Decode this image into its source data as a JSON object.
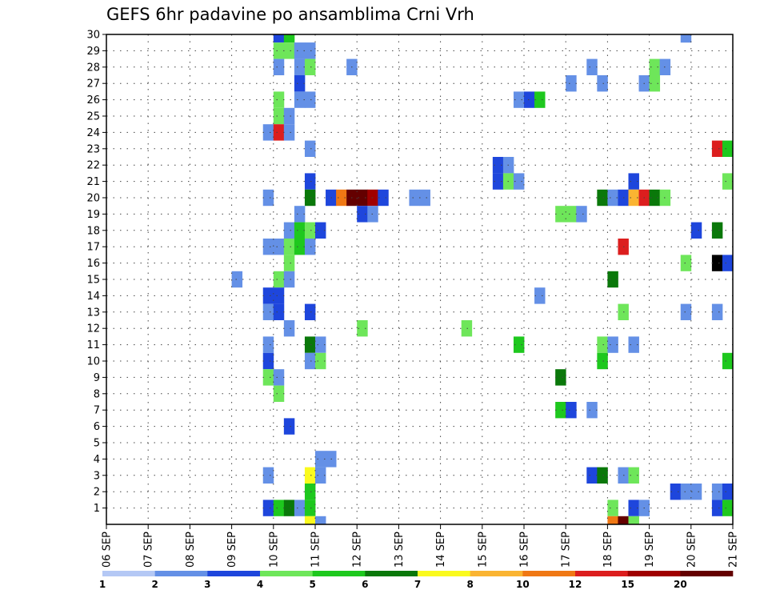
{
  "chart_data": {
    "type": "heatmap",
    "title": "GEFS 6hr padavine po ansamblima Crni Vrh",
    "x": {
      "start": "06 SEP",
      "steps_per_day": 4,
      "num_steps": 60,
      "ticks": [
        "06 SEP",
        "07 SEP",
        "08 SEP",
        "09 SEP",
        "10 SEP",
        "11 SEP",
        "12 SEP",
        "13 SEP",
        "14 SEP",
        "15 SEP",
        "16 SEP",
        "17 SEP",
        "18 SEP",
        "19 SEP",
        "20 SEP",
        "21 SEP"
      ]
    },
    "y": {
      "min": 0,
      "max": 30,
      "ticks": [
        "1",
        "2",
        "3",
        "4",
        "5",
        "6",
        "7",
        "8",
        "9",
        "10",
        "11",
        "12",
        "13",
        "14",
        "15",
        "16",
        "17",
        "18",
        "19",
        "20",
        "21",
        "22",
        "23",
        "24",
        "25",
        "26",
        "27",
        "28",
        "29",
        "30"
      ]
    },
    "colorbar": {
      "colors": [
        "#b4c8f5",
        "#6490e6",
        "#1e46dc",
        "#6ee65a",
        "#1ec81e",
        "#0a780a",
        "#fafa1e",
        "#fab432",
        "#f07814",
        "#dc1e1e",
        "#a00000",
        "#640000"
      ],
      "labels": [
        "1",
        "2",
        "3",
        "4",
        "5",
        "6",
        "7",
        "8",
        "10",
        "12",
        "15",
        "20"
      ]
    },
    "cells": [
      [
        16,
        29,
        2
      ],
      [
        17,
        29,
        4
      ],
      [
        17,
        28,
        3
      ],
      [
        18,
        28,
        1
      ],
      [
        19,
        28,
        1
      ],
      [
        55,
        29,
        1
      ],
      [
        16,
        28,
        3
      ],
      [
        18,
        28,
        1
      ],
      [
        19,
        28,
        1
      ],
      [
        16,
        27,
        1
      ],
      [
        18,
        27,
        1
      ],
      [
        19,
        27,
        3
      ],
      [
        23,
        27,
        1
      ],
      [
        46,
        27,
        1
      ],
      [
        52,
        27,
        3
      ],
      [
        53,
        27,
        1
      ],
      [
        18,
        26,
        2
      ],
      [
        44,
        26,
        1
      ],
      [
        47,
        26,
        1
      ],
      [
        51,
        26,
        1
      ],
      [
        52,
        26,
        3
      ],
      [
        16,
        25,
        3
      ],
      [
        18,
        25,
        1
      ],
      [
        19,
        25,
        1
      ],
      [
        39,
        25,
        1
      ],
      [
        40,
        25,
        2
      ],
      [
        41,
        25,
        4
      ],
      [
        16,
        24,
        3
      ],
      [
        17,
        24,
        1
      ],
      [
        15,
        23,
        1
      ],
      [
        16,
        23,
        9
      ],
      [
        17,
        23,
        1
      ],
      [
        19,
        22,
        1
      ],
      [
        58,
        22,
        9
      ],
      [
        59,
        22,
        4
      ],
      [
        37,
        21,
        2
      ],
      [
        38,
        21,
        1
      ],
      [
        19,
        20,
        2
      ],
      [
        37,
        20,
        2
      ],
      [
        38,
        20,
        3
      ],
      [
        39,
        20,
        1
      ],
      [
        50,
        20,
        2
      ],
      [
        59,
        20,
        3
      ],
      [
        15,
        19,
        1
      ],
      [
        19,
        19,
        5
      ],
      [
        21,
        19,
        2
      ],
      [
        22,
        19,
        8
      ],
      [
        23,
        19,
        11
      ],
      [
        24,
        19,
        11
      ],
      [
        25,
        19,
        10
      ],
      [
        26,
        19,
        2
      ],
      [
        29,
        19,
        1
      ],
      [
        30,
        19,
        1
      ],
      [
        47,
        19,
        5
      ],
      [
        48,
        19,
        1
      ],
      [
        49,
        19,
        2
      ],
      [
        50,
        19,
        7
      ],
      [
        51,
        19,
        9
      ],
      [
        52,
        19,
        5
      ],
      [
        53,
        19,
        3
      ],
      [
        18,
        18,
        1
      ],
      [
        24,
        18,
        2
      ],
      [
        25,
        18,
        1
      ],
      [
        43,
        18,
        3
      ],
      [
        44,
        18,
        3
      ],
      [
        45,
        18,
        1
      ],
      [
        17,
        17,
        1
      ],
      [
        18,
        17,
        4
      ],
      [
        19,
        17,
        3
      ],
      [
        20,
        17,
        2
      ],
      [
        56,
        17,
        2
      ],
      [
        58,
        17,
        5
      ],
      [
        15,
        16,
        1
      ],
      [
        16,
        16,
        1
      ],
      [
        17,
        16,
        3
      ],
      [
        18,
        16,
        4
      ],
      [
        19,
        16,
        1
      ],
      [
        49,
        16,
        9
      ],
      [
        17,
        15,
        3
      ],
      [
        55,
        15,
        3
      ],
      [
        58,
        15,
        12
      ],
      [
        59,
        15,
        2
      ],
      [
        12,
        14,
        1
      ],
      [
        16,
        14,
        3
      ],
      [
        17,
        14,
        1
      ],
      [
        48,
        14,
        5
      ],
      [
        15,
        13,
        2
      ],
      [
        16,
        13,
        2
      ],
      [
        41,
        13,
        1
      ],
      [
        15,
        12,
        1
      ],
      [
        16,
        12,
        2
      ],
      [
        19,
        12,
        2
      ],
      [
        49,
        12,
        3
      ],
      [
        55,
        12,
        1
      ],
      [
        58,
        12,
        1
      ],
      [
        17,
        11,
        1
      ],
      [
        24,
        11,
        3
      ],
      [
        34,
        11,
        3
      ],
      [
        15,
        10,
        1
      ],
      [
        19,
        10,
        5
      ],
      [
        20,
        10,
        1
      ],
      [
        39,
        10,
        4
      ],
      [
        47,
        10,
        3
      ],
      [
        48,
        10,
        1
      ],
      [
        50,
        10,
        1
      ],
      [
        15,
        9,
        2
      ],
      [
        19,
        9,
        1
      ],
      [
        20,
        9,
        3
      ],
      [
        47,
        9,
        4
      ],
      [
        59,
        9,
        4
      ],
      [
        15,
        8,
        3
      ],
      [
        16,
        8,
        1
      ],
      [
        43,
        8,
        5
      ],
      [
        16,
        7,
        3
      ],
      [
        43,
        6,
        4
      ],
      [
        44,
        6,
        2
      ],
      [
        46,
        6,
        1
      ],
      [
        17,
        5,
        2
      ],
      [
        20,
        3,
        1
      ],
      [
        21,
        3,
        1
      ],
      [
        15,
        2,
        1
      ],
      [
        19,
        2,
        6
      ],
      [
        20,
        2,
        1
      ],
      [
        46,
        2,
        2
      ],
      [
        47,
        2,
        5
      ],
      [
        49,
        2,
        1
      ],
      [
        50,
        2,
        3
      ],
      [
        19,
        1,
        4
      ],
      [
        54,
        1,
        2
      ],
      [
        55,
        1,
        1
      ],
      [
        56,
        1,
        1
      ],
      [
        58,
        1,
        1
      ],
      [
        59,
        1,
        2
      ],
      [
        15,
        0,
        2
      ],
      [
        16,
        0,
        4
      ],
      [
        17,
        0,
        5
      ],
      [
        18,
        0,
        1
      ],
      [
        19,
        0,
        4
      ],
      [
        48,
        0,
        3
      ],
      [
        50,
        0,
        2
      ],
      [
        51,
        0,
        1
      ],
      [
        58,
        0,
        2
      ],
      [
        59,
        0,
        4
      ],
      [
        19,
        -1,
        6
      ],
      [
        20,
        -1,
        1
      ],
      [
        48,
        -1,
        8
      ],
      [
        49,
        -1,
        11
      ],
      [
        50,
        -1,
        3
      ]
    ]
  }
}
